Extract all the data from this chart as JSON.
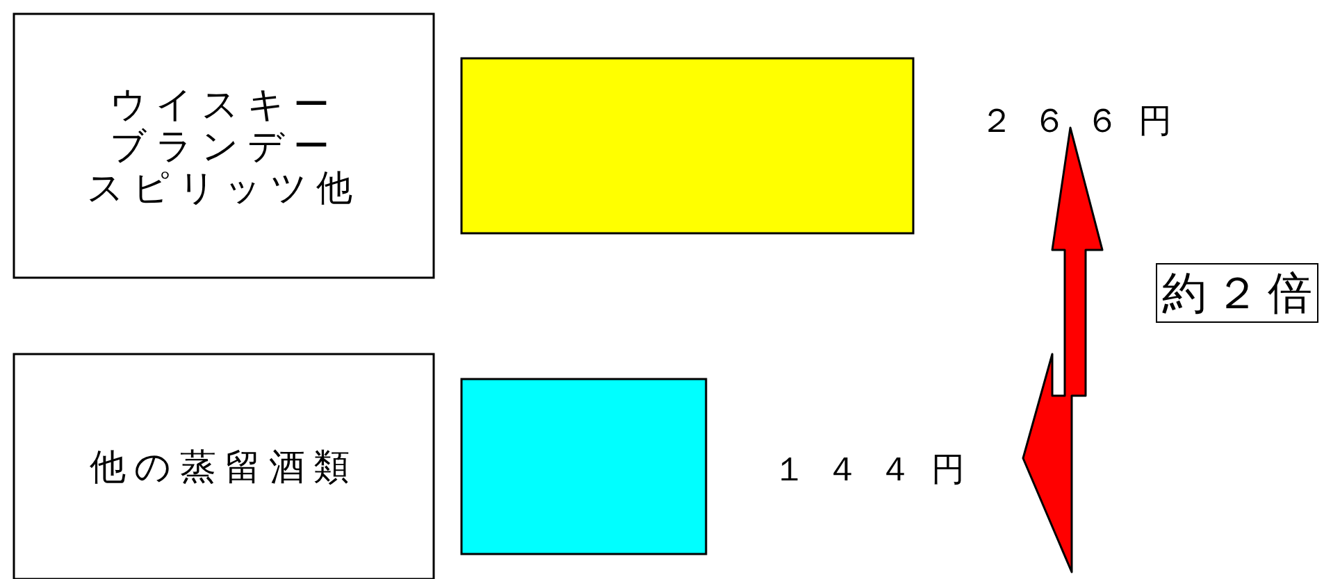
{
  "chart_data": {
    "type": "bar",
    "orientation": "horizontal",
    "categories": [
      "ウイスキーブランデースピリッツ他",
      "他の蒸留酒類"
    ],
    "values": [
      266,
      144
    ],
    "colors": [
      "#ffff00",
      "#00ffff"
    ],
    "value_labels": [
      "２６６円",
      "１４４円"
    ],
    "annotations": [
      "約２倍"
    ]
  }
}
